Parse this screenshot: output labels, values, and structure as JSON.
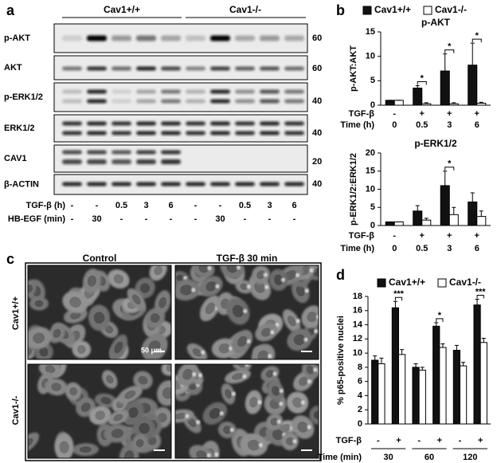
{
  "panel_labels": [
    "a",
    "b",
    "c",
    "d"
  ],
  "blot": {
    "groups": [
      "Cav1+/+",
      "Cav1-/-"
    ],
    "rows": [
      {
        "label": "p-AKT",
        "mw": 60
      },
      {
        "label": "AKT",
        "mw": 60
      },
      {
        "label": "p-ERK1/2",
        "mw": 40
      },
      {
        "label": "ERK1/2",
        "mw": 40
      },
      {
        "label": "CAV1",
        "mw": 20
      },
      {
        "label": "β-ACTIN",
        "mw": 40
      }
    ],
    "conditions": [
      {
        "label": "TGF-β (h)",
        "values": [
          "-",
          "-",
          "0.5",
          "3",
          "6",
          "-",
          "-",
          "0.5",
          "3",
          "6"
        ]
      },
      {
        "label": "HB-EGF (min)",
        "values": [
          "-",
          "30",
          "-",
          "-",
          "-",
          "-",
          "30",
          "-",
          "-",
          "-"
        ]
      }
    ]
  },
  "micrographs": {
    "columns": [
      "Control",
      "TGF-β 30 min"
    ],
    "rows": [
      "Cav1+/+",
      "Cav1-/-"
    ],
    "scale_bar": "50 μm"
  },
  "chart_data": [
    {
      "type": "bar",
      "title": "p-AKT",
      "y_label": "p-AKT:AKT",
      "categories": [
        "-",
        "+",
        "+",
        "+"
      ],
      "groups": [
        "0",
        "0.5",
        "3",
        "6"
      ],
      "row_labels": {
        "treatment": "TGF-β",
        "time": "Time (h)"
      },
      "series": [
        {
          "name": "Cav1+/+",
          "color": "#111111",
          "values": [
            1,
            3.5,
            7,
            8.2
          ],
          "errors": [
            0,
            0.5,
            3.5,
            4.5
          ]
        },
        {
          "name": "Cav1-/-",
          "color": "#ffffff",
          "values": [
            1,
            0.3,
            0.3,
            0.4
          ],
          "errors": [
            0,
            0.2,
            0.2,
            0.2
          ]
        }
      ],
      "significance": [
        null,
        "*",
        "*",
        "*"
      ],
      "ylim": [
        0,
        15
      ],
      "yticks": [
        0,
        5,
        10,
        15
      ]
    },
    {
      "type": "bar",
      "title": "p-ERK1/2",
      "y_label": "p-ERK1/2:ERK1/2",
      "categories": [
        "-",
        "+",
        "+",
        "+"
      ],
      "groups": [
        "0",
        "0.5",
        "3",
        "6"
      ],
      "row_labels": {
        "treatment": "TGF-β",
        "time": "Time (h)"
      },
      "series": [
        {
          "color": "#111111",
          "values": [
            1,
            4,
            11,
            6.5
          ],
          "errors": [
            0,
            1.5,
            4,
            2.5
          ]
        },
        {
          "color": "#ffffff",
          "values": [
            1,
            1.5,
            3,
            2.5
          ],
          "errors": [
            0,
            0.5,
            2,
            1.5
          ]
        }
      ],
      "significance": [
        null,
        null,
        "*",
        null
      ],
      "ylim": [
        0,
        20
      ],
      "yticks": [
        0,
        5,
        10,
        15,
        20
      ]
    },
    {
      "type": "bar",
      "y_label": "% p65-positive nuclei",
      "categories": [
        "-",
        "+",
        "-",
        "+",
        "-",
        "+"
      ],
      "groups": [
        "30",
        "60",
        "120"
      ],
      "row_labels": {
        "treatment": "TGF-β",
        "time": "Time (min)"
      },
      "series": [
        {
          "name": "Cav1+/+",
          "color": "#111111",
          "values": [
            9,
            16.4,
            8,
            13.8,
            10.4,
            16.8
          ],
          "errors": [
            0.6,
            0.9,
            0.5,
            0.5,
            0.7,
            0.8
          ]
        },
        {
          "name": "Cav1-/-",
          "color": "#ffffff",
          "values": [
            8.5,
            9.8,
            7.6,
            10.8,
            8.2,
            11.5
          ],
          "errors": [
            0.8,
            0.7,
            0.4,
            0.5,
            0.5,
            0.6
          ]
        }
      ],
      "significance": [
        null,
        "***",
        null,
        "*",
        null,
        "***"
      ],
      "ylim": [
        0,
        18
      ],
      "yticks": [
        0,
        2,
        4,
        6,
        8,
        10,
        12,
        14,
        16,
        18
      ]
    }
  ]
}
